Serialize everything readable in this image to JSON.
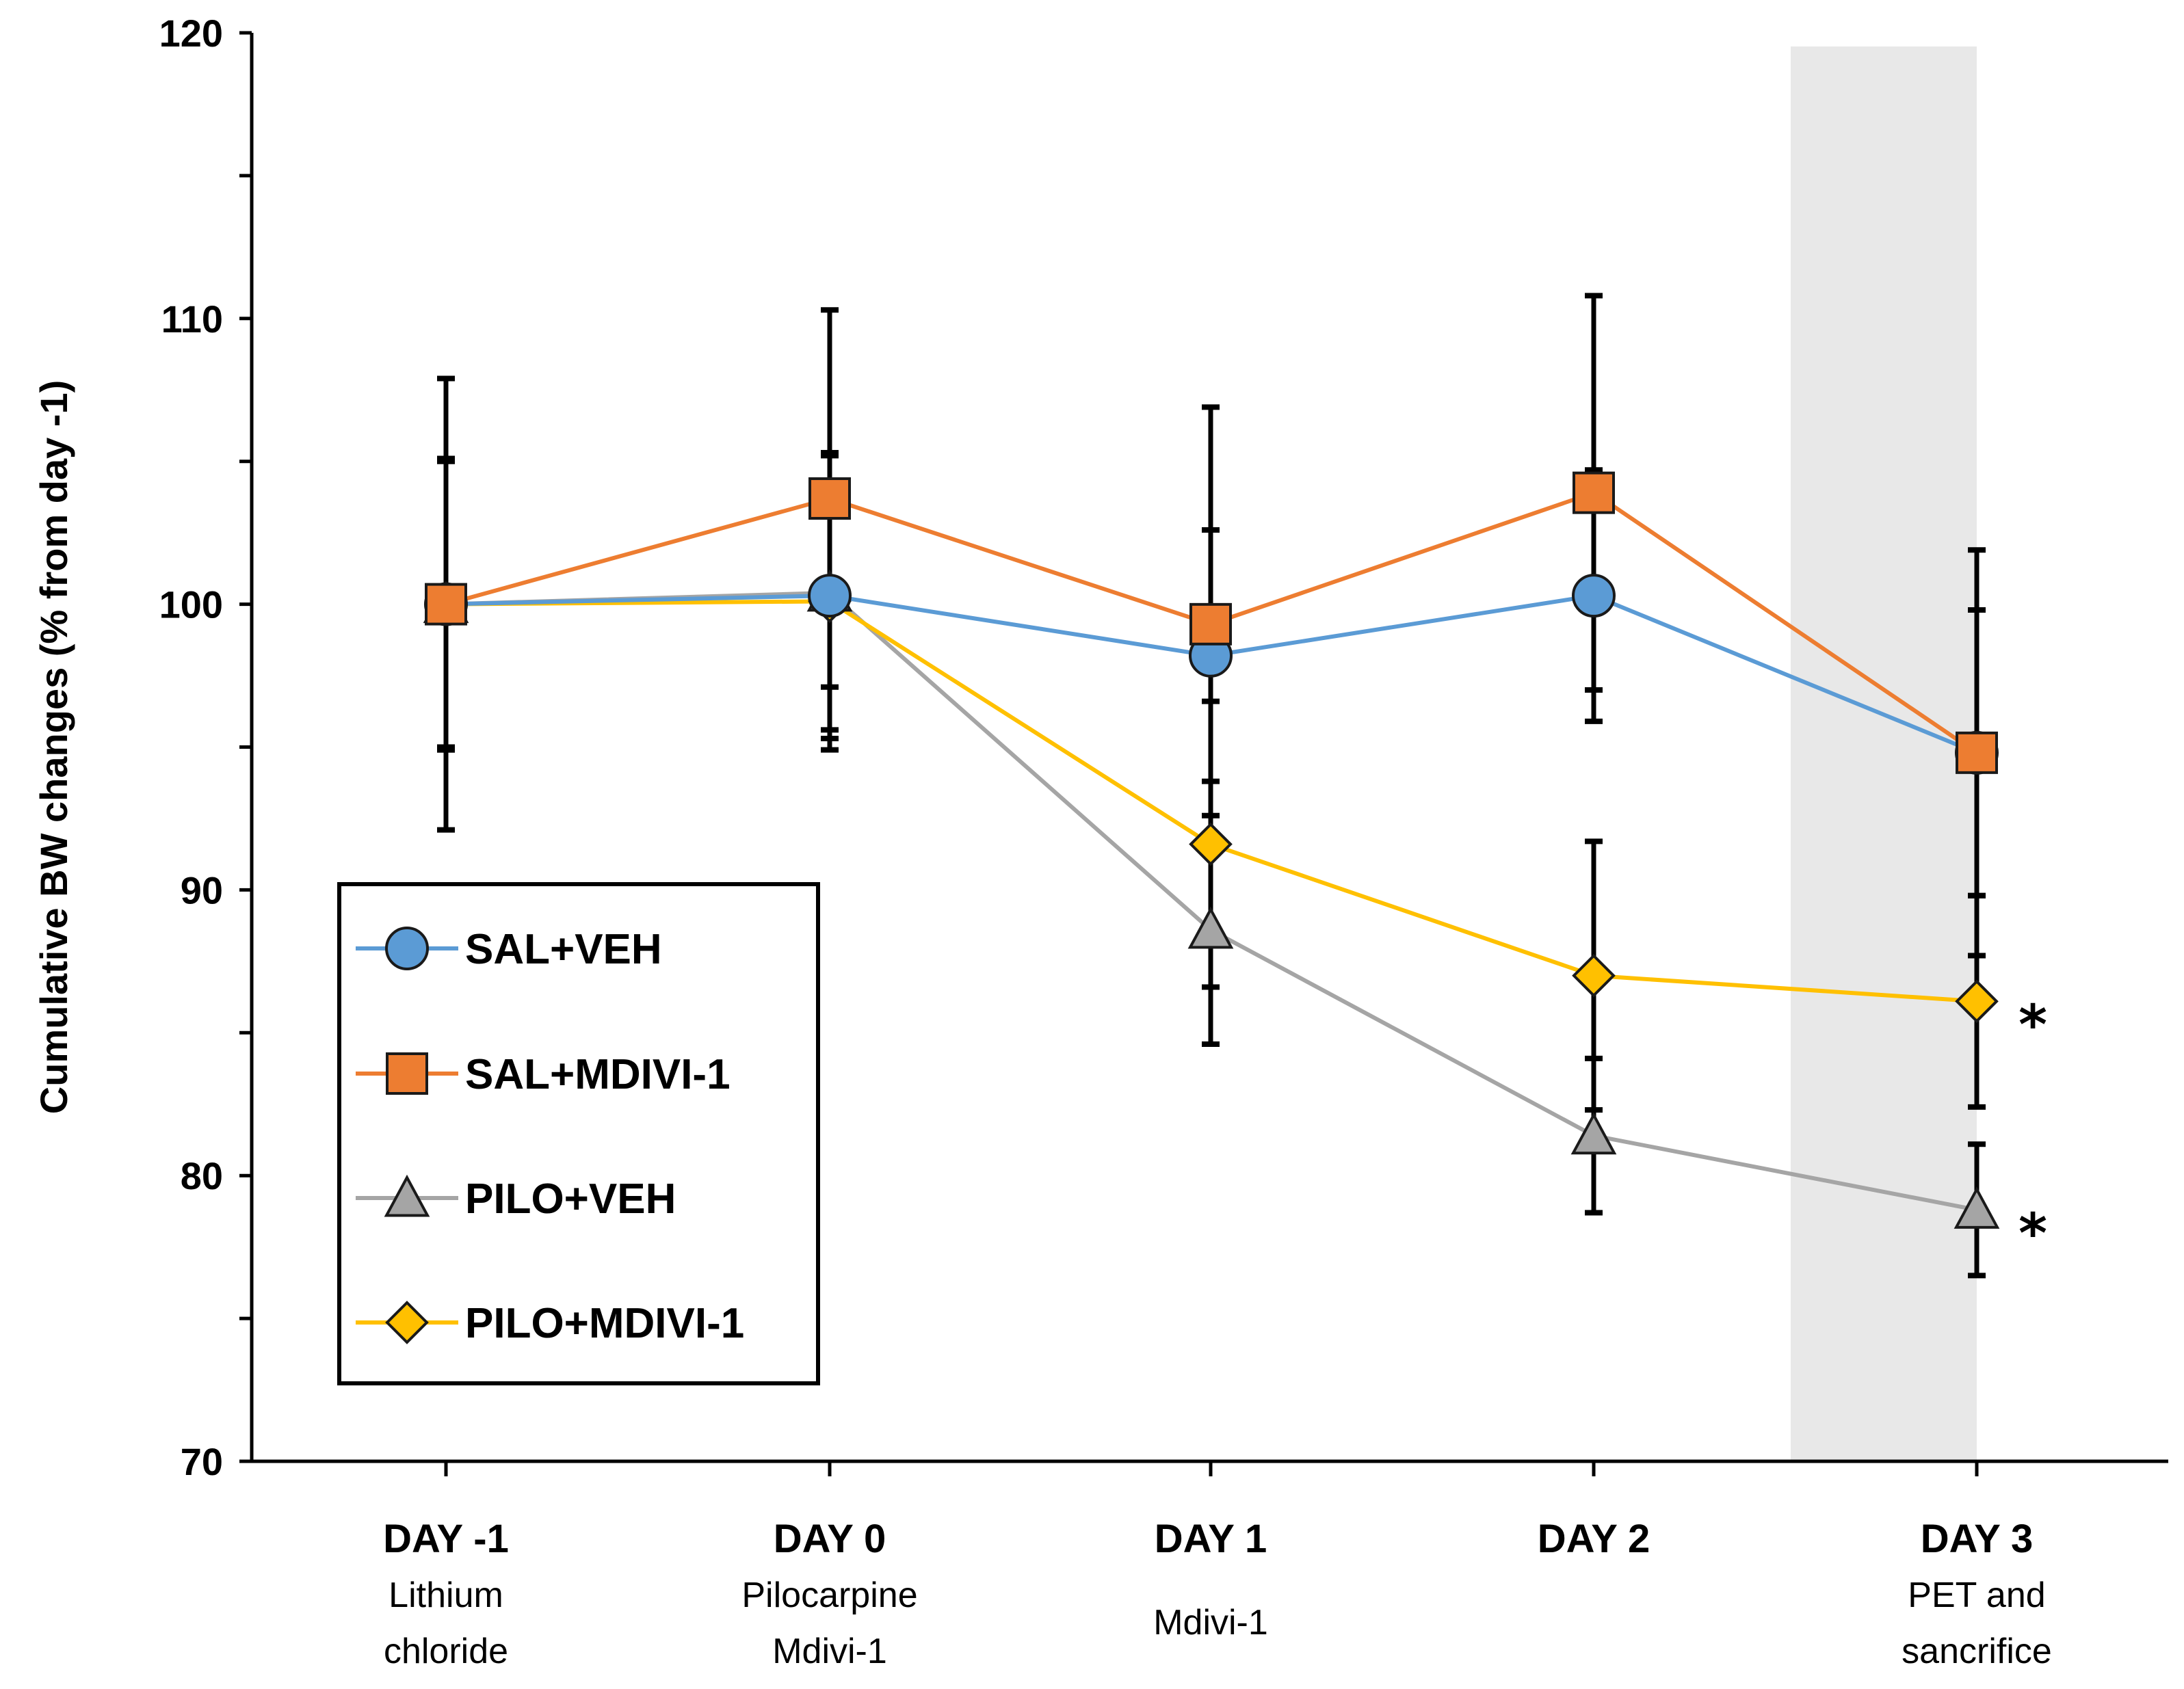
{
  "chart_data": {
    "type": "line",
    "title": "",
    "xlabel": "",
    "ylabel": "Cumulative BW changes (% from day -1)",
    "ylim": [
      70,
      120
    ],
    "yticks": [
      "70",
      "80",
      "90",
      "100",
      "110",
      "120"
    ],
    "grid": false,
    "legend_position": "lower-left",
    "categories": [
      "DAY -1",
      "DAY 0",
      "DAY 1",
      "DAY 2",
      "DAY 3"
    ],
    "category_sublabels": [
      [
        "Lithium",
        "chloride"
      ],
      [
        "Pilocarpine",
        "Mdivi-1"
      ],
      [
        "Mdivi-1"
      ],
      [],
      [
        "PET and",
        "sancrifice"
      ]
    ],
    "shaded_category": "DAY 3",
    "series": [
      {
        "name": "SAL+VEH",
        "color": "#5B9BD5",
        "marker": "circle",
        "values": [
          100.0,
          100.3,
          98.2,
          100.3,
          94.8
        ],
        "errors": [
          5.1,
          5.0,
          4.4,
          4.4,
          5.0
        ]
      },
      {
        "name": "SAL+MDIVI-1",
        "color": "#ED7D31",
        "marker": "square",
        "values": [
          100.0,
          103.7,
          99.3,
          103.9,
          94.8
        ],
        "errors": [
          7.9,
          6.6,
          7.6,
          6.9,
          7.1
        ]
      },
      {
        "name": "PILO+VEH",
        "color": "#A5A5A5",
        "marker": "triangle",
        "values": [
          100.0,
          100.4,
          88.6,
          81.4,
          78.8
        ],
        "errors": [
          5.0,
          4.8,
          4.0,
          2.7,
          2.3
        ]
      },
      {
        "name": "PILO+MDIVI-1",
        "color": "#FFC000",
        "marker": "diamond",
        "values": [
          100.0,
          100.1,
          91.6,
          87.0,
          86.1
        ],
        "errors": [
          5.1,
          5.2,
          5.0,
          4.7,
          3.7
        ]
      }
    ],
    "annotations": [
      {
        "series": "PILO+MDIVI-1",
        "category": "DAY 3",
        "text": "*"
      },
      {
        "series": "PILO+VEH",
        "category": "DAY 3",
        "text": "*"
      }
    ]
  }
}
